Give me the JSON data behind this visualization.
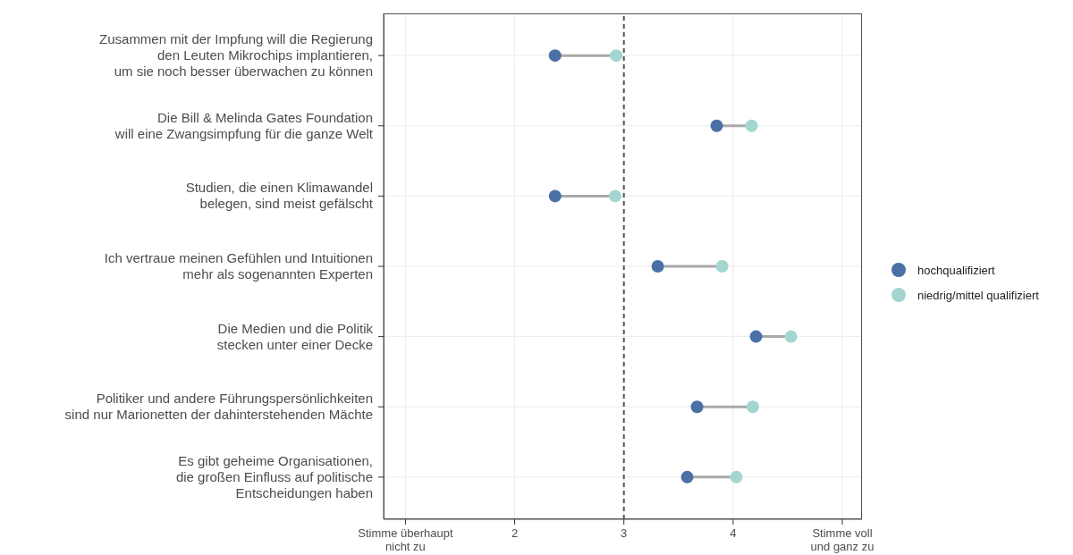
{
  "chart_data": {
    "type": "scatter",
    "categories": [
      "Zusammen mit der Impfung will die Regierung\nden Leuten Mikrochips implantieren,\num sie noch besser überwachen zu können",
      "Die Bill & Melinda Gates Foundation\nwill eine Zwangsimpfung für die ganze Welt",
      "Studien, die einen Klimawandel\nbelegen, sind meist gefälscht",
      "Ich vertraue meinen Gefühlen und Intuitionen\nmehr als sogenannten Experten",
      "Die Medien und die Politik\nstecken unter einer Decke",
      "Politiker und andere Führungspersönlichkeiten\nsind nur Marionetten der dahinterstehenden Mächte",
      "Es gibt geheime Organisationen,\ndie großen Einfluss auf politische\nEntscheidungen haben"
    ],
    "series": [
      {
        "name": "hochqualifiziert",
        "color": "#4a70a6",
        "values": [
          2.37,
          3.85,
          2.37,
          3.31,
          4.21,
          3.67,
          3.58
        ]
      },
      {
        "name": "niedrig/mittel qualifiziert",
        "color": "#a3d6d0",
        "values": [
          2.93,
          4.17,
          2.92,
          3.9,
          4.53,
          4.18,
          4.03
        ]
      }
    ],
    "orientation": "horizontal",
    "xlim": [
      0.8,
      5.18
    ],
    "xticks": [
      {
        "value": 1,
        "label": "Stimme überhaupt\nnicht zu"
      },
      2,
      3,
      4,
      {
        "value": 5,
        "label": "Stimme voll\nund ganz zu"
      }
    ],
    "ref_lines": [
      {
        "axis": "x",
        "value": 3,
        "color": "#555555",
        "line_style": "dashed"
      }
    ],
    "grid": true,
    "legend": "right",
    "marker": "circle"
  }
}
